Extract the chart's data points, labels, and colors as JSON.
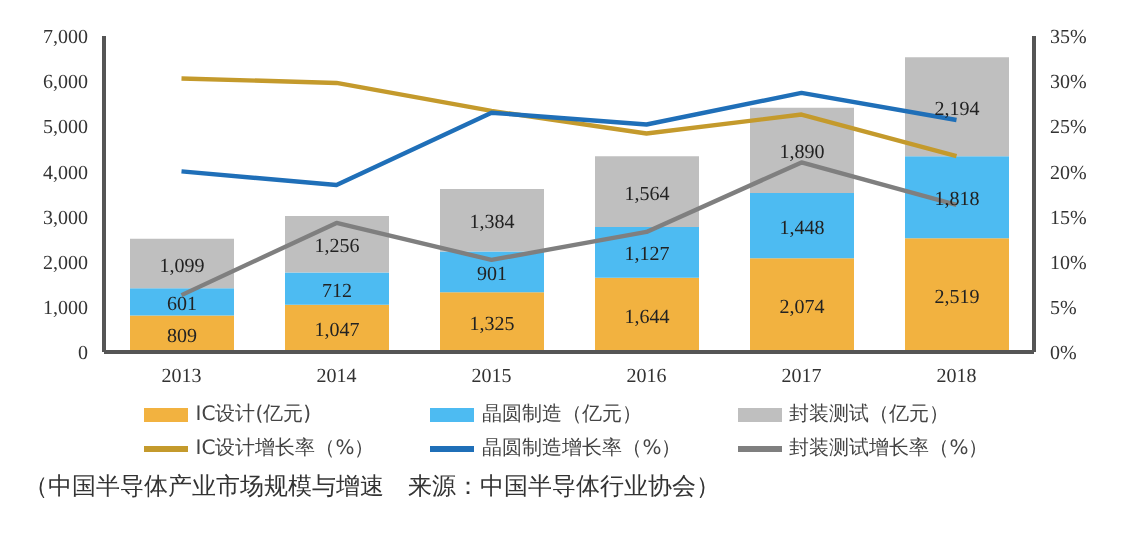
{
  "chart_data": {
    "type": "bar",
    "stacked": true,
    "categories": [
      "2013",
      "2014",
      "2015",
      "2016",
      "2017",
      "2018"
    ],
    "series": [
      {
        "name": "IC设计(亿元)",
        "color": "#f2b240",
        "values": [
          809,
          1047,
          1325,
          1644,
          2074,
          2519
        ],
        "value_labels": [
          "809",
          "1,047",
          "1,325",
          "1,644",
          "2,074",
          "2,519"
        ]
      },
      {
        "name": "晶圆制造（亿元）",
        "color": "#4dbbf2",
        "values": [
          601,
          712,
          901,
          1127,
          1448,
          1818
        ],
        "value_labels": [
          "601",
          "712",
          "901",
          "1,127",
          "1,448",
          "1,818"
        ]
      },
      {
        "name": "封装测试（亿元）",
        "color": "#bfbfbf",
        "values": [
          1099,
          1256,
          1384,
          1564,
          1890,
          2194
        ],
        "value_labels": [
          "1,099",
          "1,256",
          "1,384",
          "1,564",
          "1,890",
          "2,194"
        ]
      },
      {
        "name": "IC设计增长率（%）",
        "type": "line",
        "axis": "y2",
        "color": "#c49a2c",
        "values": [
          30.3,
          29.8,
          26.7,
          24.2,
          26.3,
          21.7
        ]
      },
      {
        "name": "晶圆制造增长率（%）",
        "type": "line",
        "axis": "y2",
        "color": "#1f6fb8",
        "values": [
          20.0,
          18.5,
          26.5,
          25.2,
          28.7,
          25.7
        ]
      },
      {
        "name": "封装测试增长率（%）",
        "type": "line",
        "axis": "y2",
        "color": "#7f7f7f",
        "values": [
          6.3,
          14.3,
          10.2,
          13.3,
          21.0,
          16.3
        ]
      }
    ],
    "ylim": [
      0,
      7000
    ],
    "yticks": [
      0,
      {
        "value": 1000,
        "label": "1,000"
      },
      {
        "value": 2000,
        "label": "2,000"
      },
      {
        "value": 3000,
        "label": "3,000"
      },
      {
        "value": 4000,
        "label": "4,000"
      },
      {
        "value": 5000,
        "label": "5,000"
      },
      {
        "value": 6000,
        "label": "6,000"
      },
      {
        "value": 7000,
        "label": "7,000"
      }
    ],
    "y2lim": [
      0,
      35
    ],
    "y2ticks": [
      {
        "value": 0,
        "label": "0%"
      },
      {
        "value": 5,
        "label": "5%"
      },
      {
        "value": 10,
        "label": "10%"
      },
      {
        "value": 15,
        "label": "15%"
      },
      {
        "value": 20,
        "label": "20%"
      },
      {
        "value": 25,
        "label": "25%"
      },
      {
        "value": 30,
        "label": "30%"
      },
      {
        "value": 35,
        "label": "35%"
      }
    ],
    "grid": false,
    "legend": "bottom",
    "marker": "none",
    "annotations": [
      "（中国半导体产业市场规模与增速　来源：中国半导体行业协会）"
    ]
  }
}
